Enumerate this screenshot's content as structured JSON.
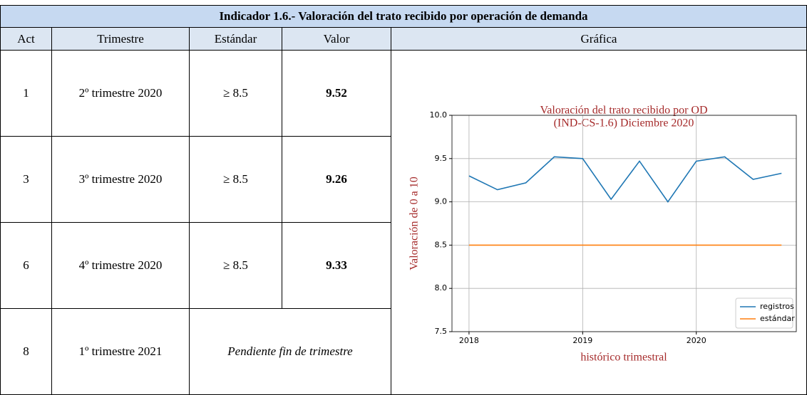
{
  "table": {
    "title": "Indicador 1.6.- Valoración del trato recibido por operación de demanda",
    "header": [
      "Act",
      "Trimestre",
      "Estándar",
      "Valor",
      "Gráfica"
    ],
    "rows": [
      [
        "1",
        "2º trimestre 2020",
        "≥ 8.5",
        "9.52"
      ],
      [
        "3",
        "3º trimestre 2020",
        "≥ 8.5",
        "9.26"
      ],
      [
        "6",
        "4º trimestre 2020",
        "≥ 8.5",
        "9.33"
      ],
      [
        "8",
        "1º trimestre 2021",
        "Pendiente fin de trimestre"
      ]
    ]
  },
  "chart_data": {
    "type": "line",
    "title": [
      "Valoración del trato recibido por OD",
      "(IND-CS-1.6) Diciembre 2020"
    ],
    "xlabel": "histórico trimestral",
    "ylabel": "Valoración de 0 a 10",
    "x": [
      2018,
      2018.25,
      2018.5,
      2018.75,
      2019,
      2019.25,
      2019.5,
      2019.75,
      2020,
      2020.25,
      2020.5,
      2020.75
    ],
    "series": [
      {
        "name": "registros",
        "color": "#1f77b4",
        "values": [
          9.3,
          9.14,
          9.22,
          9.52,
          9.5,
          9.03,
          9.47,
          9.0,
          9.47,
          9.52,
          9.26,
          9.33
        ]
      },
      {
        "name": "estándar",
        "color": "#ff7f0e",
        "values": [
          8.5,
          8.5,
          8.5,
          8.5,
          8.5,
          8.5,
          8.5,
          8.5,
          8.5,
          8.5,
          8.5,
          8.5
        ]
      }
    ],
    "xlim": [
      2017.85,
      2020.88
    ],
    "ylim": [
      7.5,
      10
    ],
    "xticks": [
      2018,
      2019,
      2020
    ],
    "yticks": [
      7.5,
      {
        "value": 8,
        "label": "8.0"
      },
      8.5,
      {
        "value": 9,
        "label": "9.0"
      },
      9.5,
      {
        "value": 10,
        "label": "10.0"
      }
    ],
    "grid": true,
    "legend": "lower right"
  }
}
